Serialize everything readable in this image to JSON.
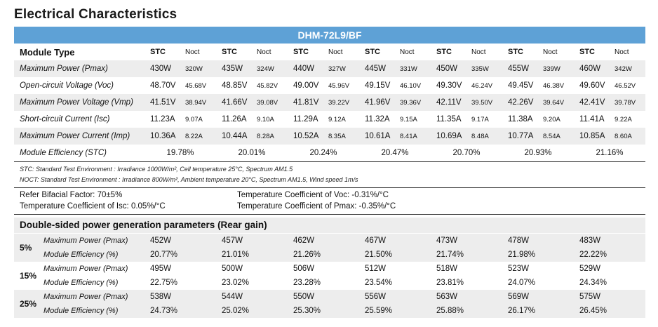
{
  "title": "Electrical Characteristics",
  "model": "DHM-72L9/BF",
  "table": {
    "header_label": "Module Type",
    "stc_label": "STC",
    "noct_label": "Noct",
    "rows": [
      {
        "label": "Maximum Power (Pmax)",
        "cells": [
          [
            "430W",
            "320W"
          ],
          [
            "435W",
            "324W"
          ],
          [
            "440W",
            "327W"
          ],
          [
            "445W",
            "331W"
          ],
          [
            "450W",
            "335W"
          ],
          [
            "455W",
            "339W"
          ],
          [
            "460W",
            "342W"
          ]
        ]
      },
      {
        "label": "Open-circuit Voltage (Voc)",
        "cells": [
          [
            "48.70V",
            "45.68V"
          ],
          [
            "48.85V",
            "45.82V"
          ],
          [
            "49.00V",
            "45.96V"
          ],
          [
            "49.15V",
            "46.10V"
          ],
          [
            "49.30V",
            "46.24V"
          ],
          [
            "49.45V",
            "46.38V"
          ],
          [
            "49.60V",
            "46.52V"
          ]
        ]
      },
      {
        "label": "Maximum Power Voltage (Vmp)",
        "cells": [
          [
            "41.51V",
            "38.94V"
          ],
          [
            "41.66V",
            "39.08V"
          ],
          [
            "41.81V",
            "39.22V"
          ],
          [
            "41.96V",
            "39.36V"
          ],
          [
            "42.11V",
            "39.50V"
          ],
          [
            "42.26V",
            "39.64V"
          ],
          [
            "42.41V",
            "39.78V"
          ]
        ]
      },
      {
        "label": "Short-circuit Current (Isc)",
        "cells": [
          [
            "11.23A",
            "9.07A"
          ],
          [
            "11.26A",
            "9.10A"
          ],
          [
            "11.29A",
            "9.12A"
          ],
          [
            "11.32A",
            "9.15A"
          ],
          [
            "11.35A",
            "9.17A"
          ],
          [
            "11.38A",
            "9.20A"
          ],
          [
            "11.41A",
            "9.22A"
          ]
        ]
      },
      {
        "label": "Maximum Power Current (Imp)",
        "cells": [
          [
            "10.36A",
            "8.22A"
          ],
          [
            "10.44A",
            "8.28A"
          ],
          [
            "10.52A",
            "8.35A"
          ],
          [
            "10.61A",
            "8.41A"
          ],
          [
            "10.69A",
            "8.48A"
          ],
          [
            "10.77A",
            "8.54A"
          ],
          [
            "10.85A",
            "8.60A"
          ]
        ]
      }
    ],
    "efficiency_label": "Module Efficiency (STC)",
    "efficiency": [
      "19.78%",
      "20.01%",
      "20.24%",
      "20.47%",
      "20.70%",
      "20.93%",
      "21.16%"
    ]
  },
  "notes": {
    "stc": "STC: Standard Test Environment : Irradiance 1000W/m², Cell temperature 25°C, Spectrum AM1.5",
    "noct": "NOCT: Standard Test Environment : Irradiance 800W/m², Ambient temperature 20°C, Spectrum AM1.5, Wind speed 1m/s"
  },
  "coefficients": {
    "bifacial": "Refer Bifacial Factor: 70±5%",
    "isc": "Temperature Coefficient of Isc: 0.05%/°C",
    "voc": "Temperature Coefficient of Voc: -0.31%/°C",
    "pmax": "Temperature Coefficient of Pmax: -0.35%/°C"
  },
  "rear_gain": {
    "title": "Double-sided power generation parameters (Rear gain)",
    "power_label": "Maximum Power (Pmax)",
    "efficiency_label": "Module Efficiency (%)",
    "groups": [
      {
        "pct": "5%",
        "power": [
          "452W",
          "457W",
          "462W",
          "467W",
          "473W",
          "478W",
          "483W"
        ],
        "efficiency": [
          "20.77%",
          "21.01%",
          "21.26%",
          "21.50%",
          "21.74%",
          "21.98%",
          "22.22%"
        ]
      },
      {
        "pct": "15%",
        "power": [
          "495W",
          "500W",
          "506W",
          "512W",
          "518W",
          "523W",
          "529W"
        ],
        "efficiency": [
          "22.75%",
          "23.02%",
          "23.28%",
          "23.54%",
          "23.81%",
          "24.07%",
          "24.34%"
        ]
      },
      {
        "pct": "25%",
        "power": [
          "538W",
          "544W",
          "550W",
          "556W",
          "563W",
          "569W",
          "575W"
        ],
        "efficiency": [
          "24.73%",
          "25.02%",
          "25.30%",
          "25.59%",
          "25.88%",
          "26.17%",
          "26.45%"
        ]
      }
    ]
  }
}
